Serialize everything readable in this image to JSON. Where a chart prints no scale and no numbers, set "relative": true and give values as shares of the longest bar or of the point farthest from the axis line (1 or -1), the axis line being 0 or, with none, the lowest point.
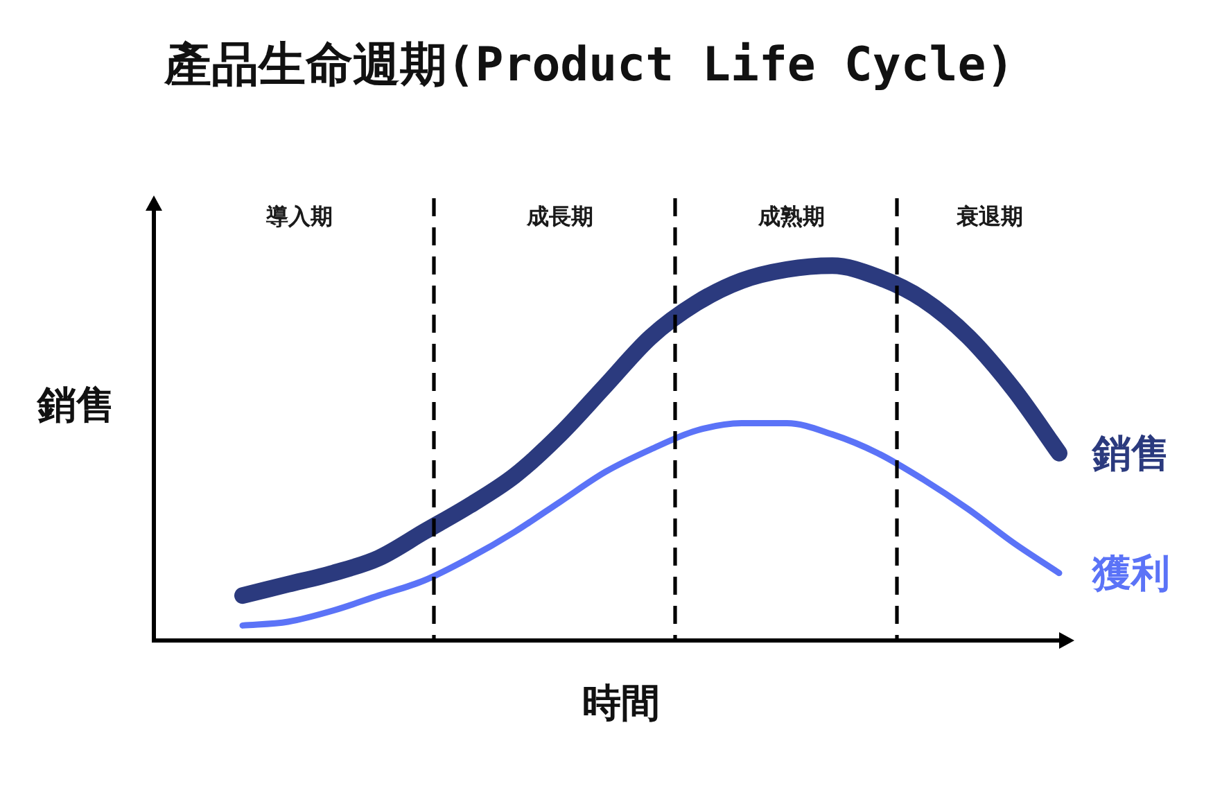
{
  "chart_data": {
    "type": "line",
    "title": "產品生命週期(Product Life Cycle)",
    "xlabel": "時間",
    "ylabel": "銷售",
    "relative": true,
    "line_style": "solid",
    "categories": [
      null,
      null,
      null,
      null,
      null,
      null,
      null,
      null,
      null,
      null,
      null,
      null,
      null,
      null,
      null,
      null,
      null,
      null,
      null
    ],
    "series": [
      {
        "name": "銷售",
        "color": "#2b3a7e",
        "values": [
          0.12,
          0.15,
          0.18,
          0.22,
          0.29,
          0.36,
          0.44,
          0.55,
          0.68,
          0.81,
          0.9,
          0.96,
          0.99,
          1.0,
          0.97,
          0.91,
          0.81,
          0.67,
          0.5
        ]
      },
      {
        "name": "獲利",
        "color": "#5b73f7",
        "values": [
          0.04,
          0.05,
          0.08,
          0.12,
          0.16,
          0.22,
          0.29,
          0.37,
          0.45,
          0.51,
          0.56,
          0.58,
          0.58,
          0.55,
          0.5,
          0.43,
          0.35,
          0.26,
          0.18
        ]
      }
    ],
    "annotations": [
      "導入期",
      "成長期",
      "成熟期",
      "衰退期"
    ]
  }
}
